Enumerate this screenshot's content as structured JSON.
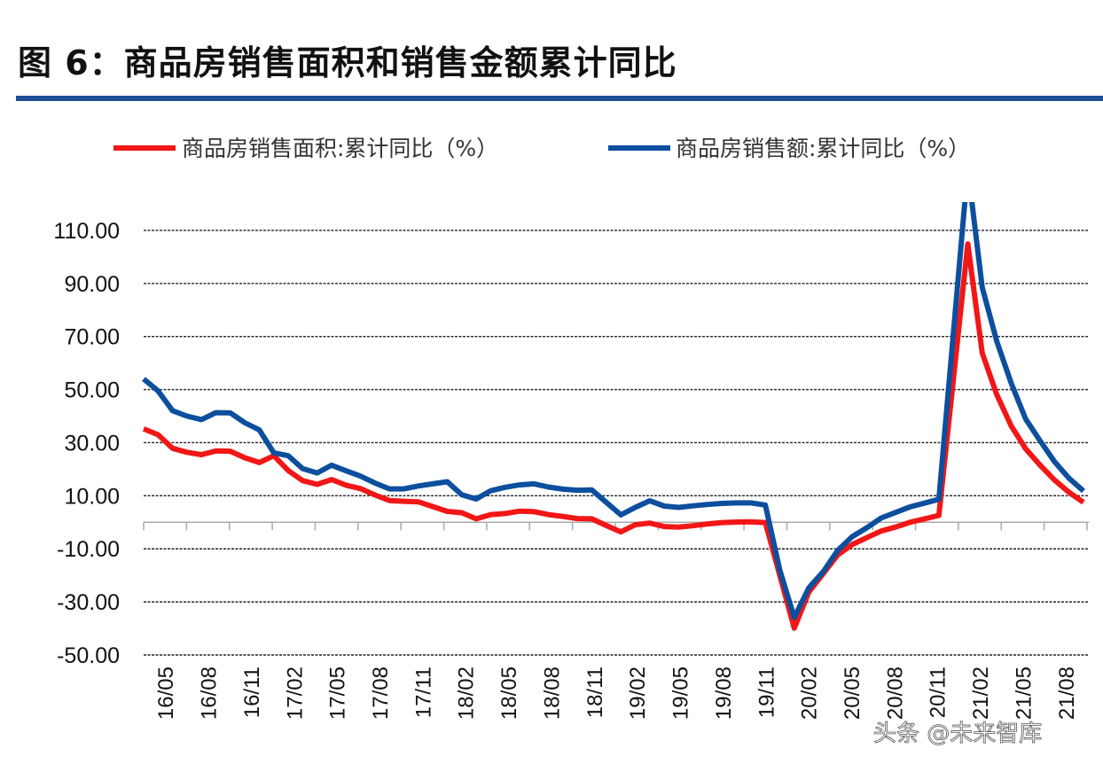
{
  "title": "图 6：商品房销售面积和销售金额累计同比",
  "watermark": "头条 @未来智库",
  "chart_data": {
    "type": "line",
    "title": "图 6：商品房销售面积和销售金额累计同比",
    "xlabel": "",
    "ylabel": "",
    "ylim": [
      -50,
      120
    ],
    "yticks": [
      "110.00",
      "90.00",
      "70.00",
      "50.00",
      "30.00",
      "10.00",
      "-10.00",
      "-30.00",
      "-50.00"
    ],
    "ytick_values": [
      110,
      90,
      70,
      50,
      30,
      10,
      -10,
      -30,
      -50
    ],
    "grid": true,
    "legend": "top",
    "x": [
      "16/05",
      "16/06",
      "16/07",
      "16/08",
      "16/09",
      "16/10",
      "16/11",
      "16/12",
      "17/01",
      "17/02",
      "17/03",
      "17/04",
      "17/05",
      "17/06",
      "17/07",
      "17/08",
      "17/09",
      "17/10",
      "17/11",
      "17/12",
      "18/01",
      "18/02",
      "18/03",
      "18/04",
      "18/05",
      "18/06",
      "18/07",
      "18/08",
      "18/09",
      "18/10",
      "18/11",
      "18/12",
      "19/01",
      "19/02",
      "19/03",
      "19/04",
      "19/05",
      "19/06",
      "19/07",
      "19/08",
      "19/09",
      "19/10",
      "19/11",
      "19/12",
      "20/01",
      "20/02",
      "20/03",
      "20/04",
      "20/05",
      "20/06",
      "20/07",
      "20/08",
      "20/09",
      "20/10",
      "20/11",
      "20/12",
      "21/01",
      "21/02",
      "21/03",
      "21/04",
      "21/05",
      "21/06",
      "21/07",
      "21/08",
      "21/09",
      "21/10"
    ],
    "xtick_labels": [
      "16/05",
      "16/08",
      "16/11",
      "17/02",
      "17/05",
      "17/08",
      "17/11",
      "18/02",
      "18/05",
      "18/08",
      "18/11",
      "19/02",
      "19/05",
      "19/08",
      "19/11",
      "20/02",
      "20/05",
      "20/08",
      "20/11",
      "21/02",
      "21/05",
      "21/08"
    ],
    "series": [
      {
        "name": "商品房销售面积:累计同比（%）",
        "color": "#f21616",
        "values": [
          35.2,
          33.0,
          27.9,
          26.4,
          25.5,
          26.9,
          26.8,
          24.3,
          22.5,
          25.1,
          19.5,
          15.7,
          14.3,
          16.1,
          14.0,
          12.7,
          10.3,
          8.2,
          7.9,
          7.7,
          5.9,
          4.1,
          3.6,
          1.3,
          2.9,
          3.3,
          4.2,
          4.0,
          2.9,
          2.2,
          1.4,
          1.3,
          -1.2,
          -3.6,
          -0.9,
          -0.3,
          -1.6,
          -1.8,
          -1.3,
          -0.6,
          -0.1,
          0.1,
          0.2,
          -0.1,
          -20.0,
          -39.9,
          -26.3,
          -19.3,
          -12.3,
          -8.4,
          -5.8,
          -3.3,
          -1.8,
          0.0,
          1.3,
          2.6,
          53.7,
          104.9,
          63.8,
          48.1,
          36.3,
          27.7,
          21.5,
          15.9,
          11.3,
          7.5
        ]
      },
      {
        "name": "商品房销售额:累计同比（%）",
        "color": "#0d4f9e",
        "values": [
          54.0,
          49.5,
          42.1,
          40.0,
          38.7,
          41.3,
          41.2,
          37.5,
          34.8,
          26.2,
          25.1,
          20.2,
          18.6,
          21.5,
          19.4,
          17.4,
          14.8,
          12.6,
          12.6,
          13.7,
          14.5,
          15.3,
          10.4,
          8.8,
          11.9,
          13.2,
          14.1,
          14.5,
          13.3,
          12.5,
          12.1,
          12.2,
          7.5,
          2.8,
          5.6,
          8.1,
          6.1,
          5.6,
          6.2,
          6.7,
          7.1,
          7.3,
          7.3,
          6.5,
          -18.0,
          -35.9,
          -24.7,
          -18.6,
          -10.6,
          -5.4,
          -2.1,
          1.6,
          3.7,
          5.8,
          7.2,
          8.7,
          71.0,
          133.4,
          88.5,
          68.2,
          52.4,
          38.9,
          30.7,
          22.8,
          16.6,
          11.8
        ]
      }
    ]
  }
}
